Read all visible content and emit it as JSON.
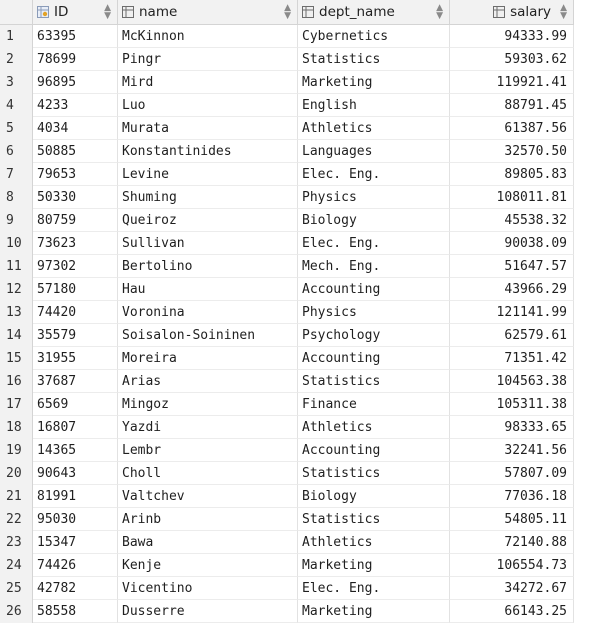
{
  "columns": [
    {
      "label": "ID",
      "icon": "key-column-icon"
    },
    {
      "label": "name",
      "icon": "column-icon"
    },
    {
      "label": "dept_name",
      "icon": "column-icon"
    },
    {
      "label": "salary",
      "icon": "column-icon"
    }
  ],
  "rows": [
    {
      "n": "1",
      "id": "63395",
      "name": "McKinnon",
      "dept": "Cybernetics",
      "salary": "94333.99"
    },
    {
      "n": "2",
      "id": "78699",
      "name": "Pingr",
      "dept": "Statistics",
      "salary": "59303.62"
    },
    {
      "n": "3",
      "id": "96895",
      "name": "Mird",
      "dept": "Marketing",
      "salary": "119921.41"
    },
    {
      "n": "4",
      "id": "4233",
      "name": "Luo",
      "dept": "English",
      "salary": "88791.45"
    },
    {
      "n": "5",
      "id": "4034",
      "name": "Murata",
      "dept": "Athletics",
      "salary": "61387.56"
    },
    {
      "n": "6",
      "id": "50885",
      "name": "Konstantinides",
      "dept": "Languages",
      "salary": "32570.50"
    },
    {
      "n": "7",
      "id": "79653",
      "name": "Levine",
      "dept": "Elec. Eng.",
      "salary": "89805.83"
    },
    {
      "n": "8",
      "id": "50330",
      "name": "Shuming",
      "dept": "Physics",
      "salary": "108011.81"
    },
    {
      "n": "9",
      "id": "80759",
      "name": "Queiroz",
      "dept": "Biology",
      "salary": "45538.32"
    },
    {
      "n": "10",
      "id": "73623",
      "name": "Sullivan",
      "dept": "Elec. Eng.",
      "salary": "90038.09"
    },
    {
      "n": "11",
      "id": "97302",
      "name": "Bertolino",
      "dept": "Mech. Eng.",
      "salary": "51647.57"
    },
    {
      "n": "12",
      "id": "57180",
      "name": "Hau",
      "dept": "Accounting",
      "salary": "43966.29"
    },
    {
      "n": "13",
      "id": "74420",
      "name": "Voronina",
      "dept": "Physics",
      "salary": "121141.99"
    },
    {
      "n": "14",
      "id": "35579",
      "name": "Soisalon-Soininen",
      "dept": "Psychology",
      "salary": "62579.61"
    },
    {
      "n": "15",
      "id": "31955",
      "name": "Moreira",
      "dept": "Accounting",
      "salary": "71351.42"
    },
    {
      "n": "16",
      "id": "37687",
      "name": "Arias",
      "dept": "Statistics",
      "salary": "104563.38"
    },
    {
      "n": "17",
      "id": "6569",
      "name": "Mingoz",
      "dept": "Finance",
      "salary": "105311.38"
    },
    {
      "n": "18",
      "id": "16807",
      "name": "Yazdi",
      "dept": "Athletics",
      "salary": "98333.65"
    },
    {
      "n": "19",
      "id": "14365",
      "name": "Lembr",
      "dept": "Accounting",
      "salary": "32241.56"
    },
    {
      "n": "20",
      "id": "90643",
      "name": "Choll",
      "dept": "Statistics",
      "salary": "57807.09"
    },
    {
      "n": "21",
      "id": "81991",
      "name": "Valtchev",
      "dept": "Biology",
      "salary": "77036.18"
    },
    {
      "n": "22",
      "id": "95030",
      "name": "Arinb",
      "dept": "Statistics",
      "salary": "54805.11"
    },
    {
      "n": "23",
      "id": "15347",
      "name": "Bawa",
      "dept": "Athletics",
      "salary": "72140.88"
    },
    {
      "n": "24",
      "id": "74426",
      "name": "Kenje",
      "dept": "Marketing",
      "salary": "106554.73"
    },
    {
      "n": "25",
      "id": "42782",
      "name": "Vicentino",
      "dept": "Elec. Eng.",
      "salary": "34272.67"
    },
    {
      "n": "26",
      "id": "58558",
      "name": "Dusserre",
      "dept": "Marketing",
      "salary": "66143.25"
    }
  ],
  "colors": {
    "header_bg": "#f2f2f2",
    "key_icon": "#e2a227",
    "column_icon": "#6d6d6d"
  }
}
